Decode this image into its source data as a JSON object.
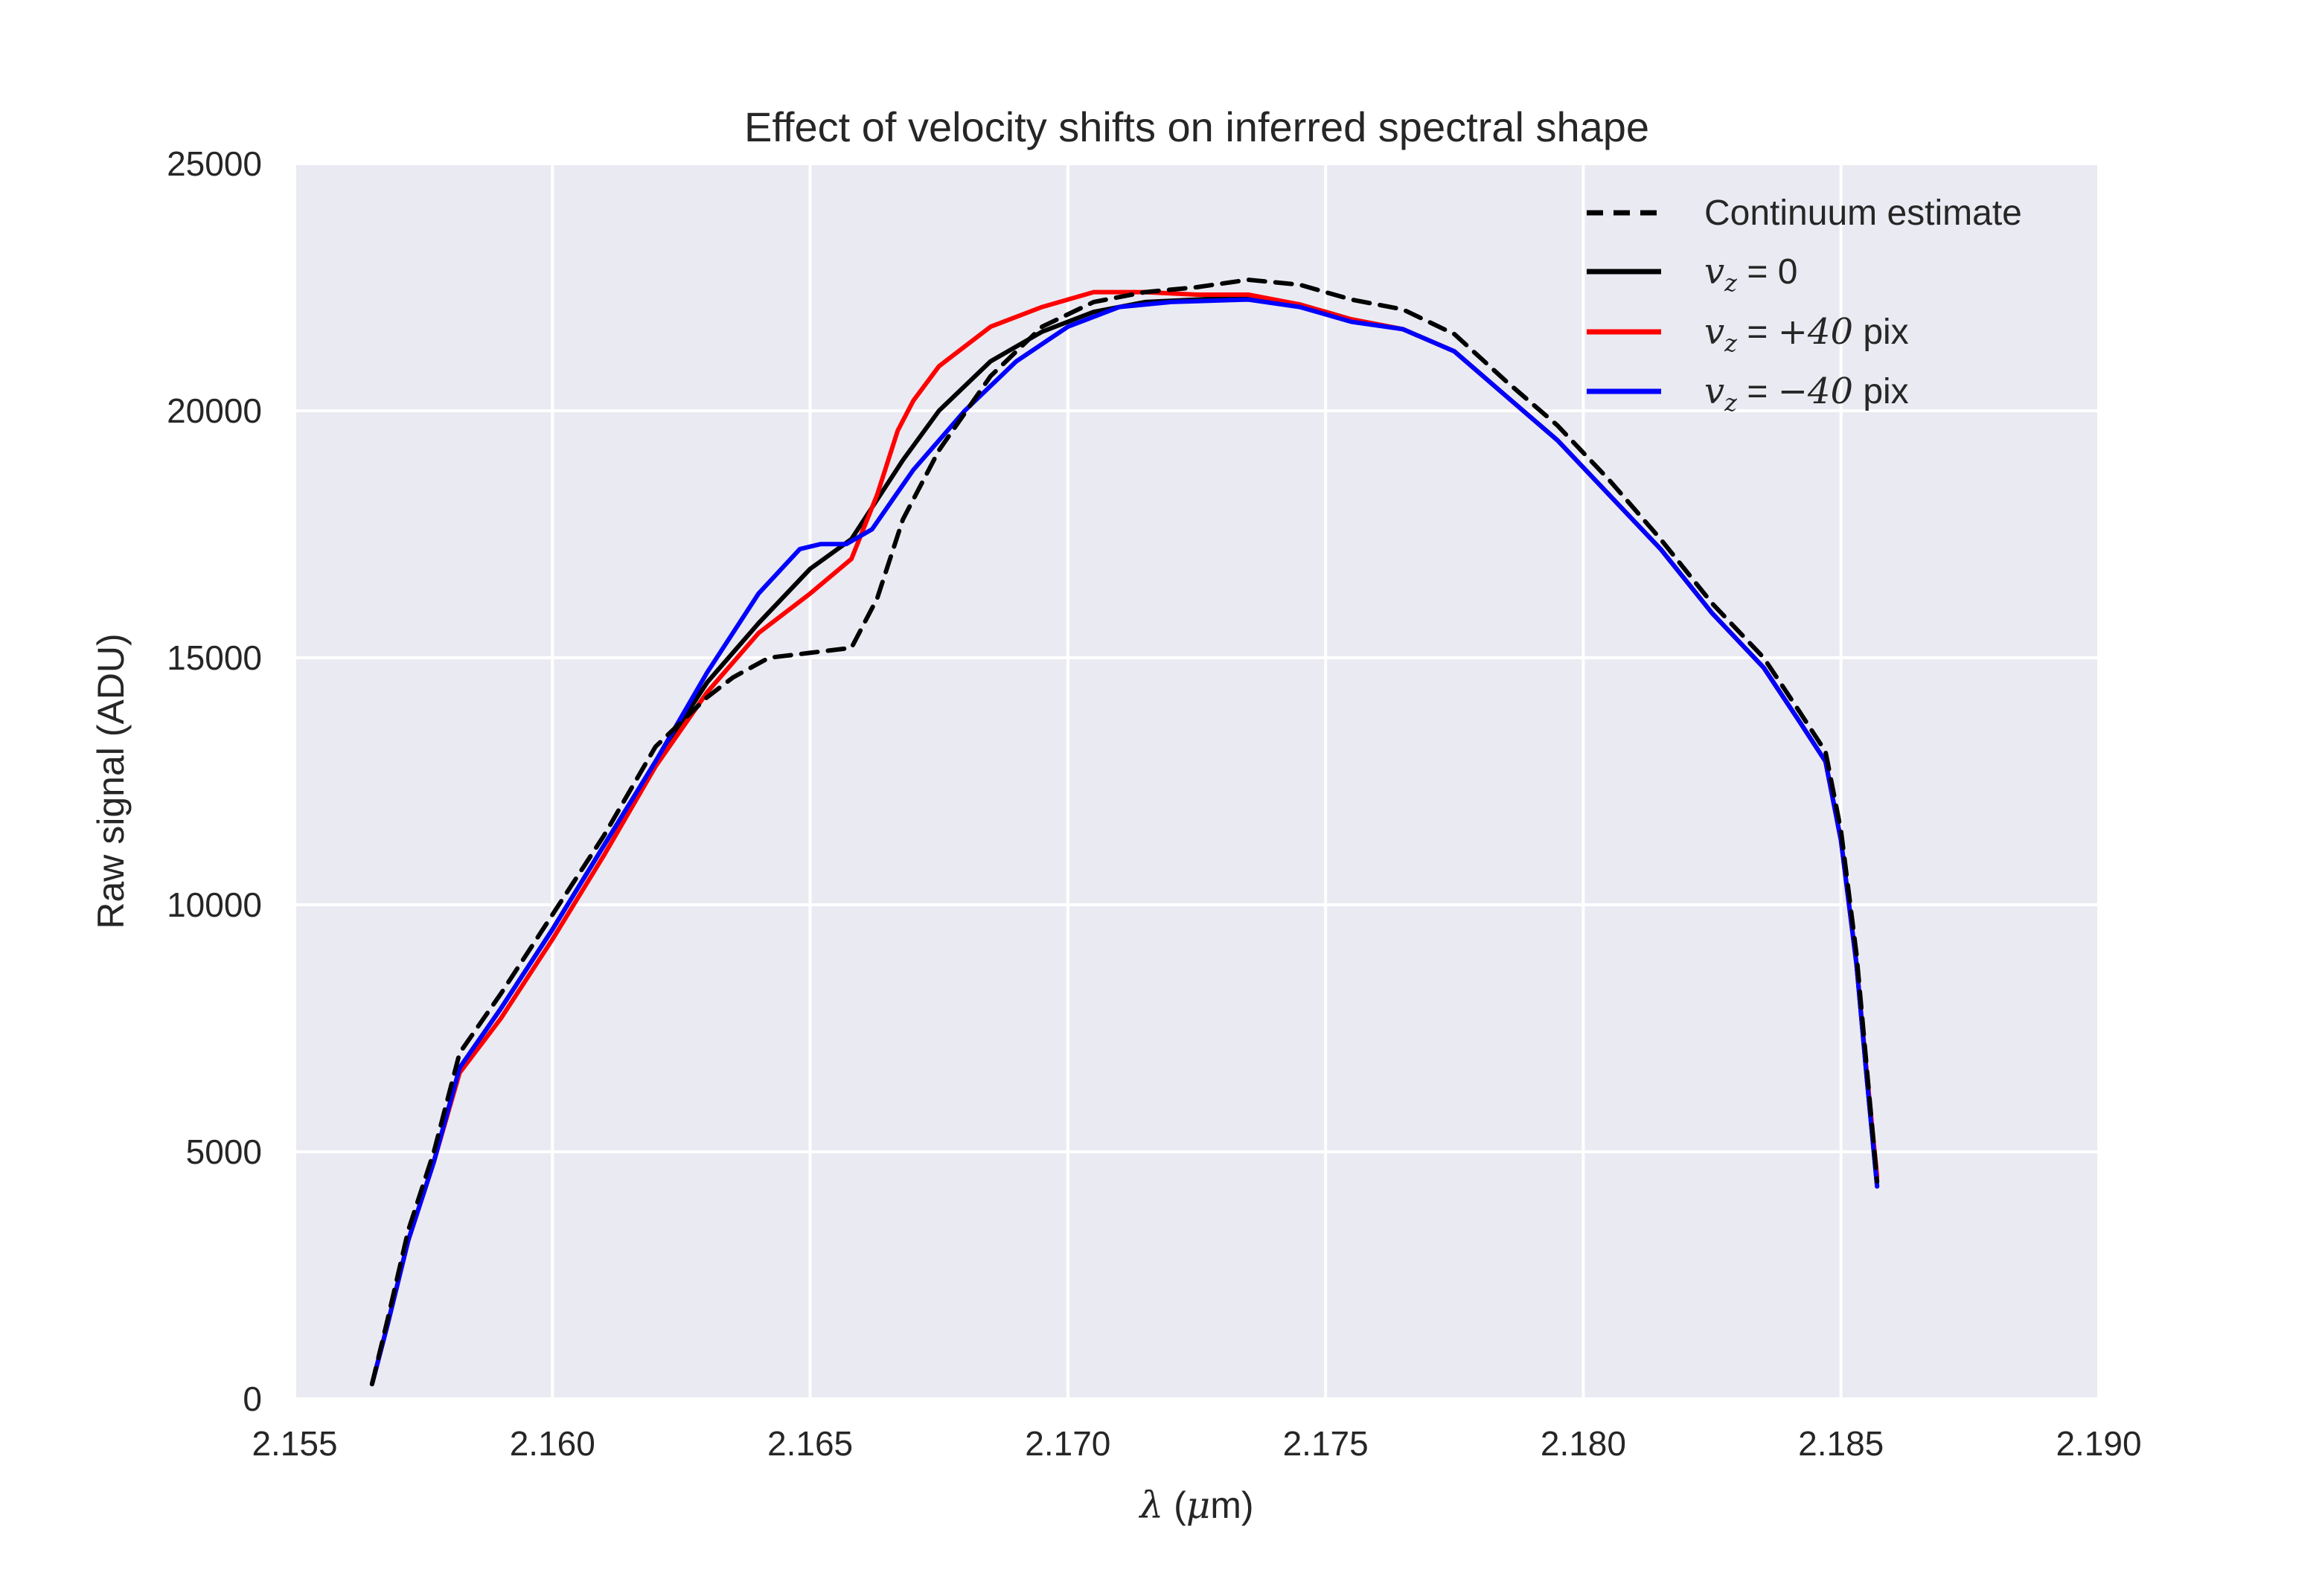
{
  "chart_data": {
    "type": "line",
    "title": "Effect of velocity shifts on inferred spectral shape",
    "xlabel": {
      "symbol": "λ",
      "open": " (",
      "mu": "μ",
      "rest": "m)"
    },
    "ylabel": "Raw signal (ADU)",
    "xlim": [
      2.155,
      2.19
    ],
    "ylim": [
      0,
      25000
    ],
    "xticks": [
      2.155,
      2.16,
      2.165,
      2.17,
      2.175,
      2.18,
      2.185,
      2.19
    ],
    "xtick_labels": [
      "2.155",
      "2.160",
      "2.165",
      "2.170",
      "2.175",
      "2.180",
      "2.185",
      "2.190"
    ],
    "yticks": [
      0,
      5000,
      10000,
      15000,
      20000,
      25000
    ],
    "ytick_labels": [
      "0",
      "5000",
      "10000",
      "15000",
      "20000",
      "25000"
    ],
    "grid": true,
    "background": "#eaeaf2",
    "legend_position": "top-right",
    "series": [
      {
        "id": "continuum",
        "label_parts": {
          "math": "",
          "text": "Continuum estimate"
        },
        "color": "#000000",
        "dash": true,
        "x": [
          2.1565,
          2.1568,
          2.1572,
          2.1577,
          2.1582,
          2.159,
          2.16,
          2.161,
          2.162,
          2.163,
          2.1635,
          2.1642,
          2.165,
          2.1658,
          2.1663,
          2.1668,
          2.1675,
          2.1685,
          2.1695,
          2.1705,
          2.1715,
          2.1725,
          2.1735,
          2.1745,
          2.1755,
          2.1765,
          2.1775,
          2.1785,
          2.1795,
          2.1805,
          2.1815,
          2.1825,
          2.1835,
          2.1842,
          2.1847,
          2.185,
          2.1853,
          2.1855,
          2.1857
        ],
        "y": [
          300,
          1600,
          3400,
          5000,
          7000,
          8200,
          9800,
          11400,
          13200,
          14200,
          14600,
          15000,
          15100,
          15200,
          16200,
          17800,
          19200,
          20700,
          21700,
          22200,
          22400,
          22500,
          22650,
          22550,
          22250,
          22050,
          21550,
          20600,
          19700,
          18600,
          17400,
          16100,
          15000,
          13900,
          13100,
          11500,
          9000,
          6700,
          4400
        ]
      },
      {
        "id": "vz0",
        "label_parts": {
          "math": "v",
          "sub": "z",
          "text": " = 0"
        },
        "color": "#000000",
        "dash": false,
        "x": [
          2.1565,
          2.1568,
          2.1572,
          2.1577,
          2.1582,
          2.159,
          2.16,
          2.161,
          2.162,
          2.163,
          2.164,
          2.165,
          2.1658,
          2.1663,
          2.1668,
          2.1675,
          2.1685,
          2.1695,
          2.1705,
          2.1715,
          2.1725,
          2.1735,
          2.1745,
          2.1755,
          2.1765,
          2.1775,
          2.1785,
          2.1795,
          2.1805,
          2.1815,
          2.1825,
          2.1835,
          2.1842,
          2.1847,
          2.185,
          2.1853,
          2.1855,
          2.1857
        ],
        "y": [
          300,
          1500,
          3200,
          4800,
          6700,
          7900,
          9500,
          11200,
          12900,
          14500,
          15700,
          16800,
          17400,
          18200,
          19000,
          20000,
          21000,
          21600,
          22000,
          22200,
          22250,
          22300,
          22150,
          21850,
          21650,
          21200,
          20300,
          19400,
          18300,
          17200,
          15900,
          14800,
          13700,
          12900,
          11300,
          8800,
          6500,
          4300
        ]
      },
      {
        "id": "vz_plus40",
        "label_parts": {
          "math": "v",
          "sub": "z",
          "text": " = ",
          "math2": "+40",
          "text2": " pix"
        },
        "color": "#ff0000",
        "dash": false,
        "x": [
          2.1565,
          2.1568,
          2.1572,
          2.1577,
          2.1582,
          2.159,
          2.16,
          2.161,
          2.162,
          2.163,
          2.164,
          2.165,
          2.1658,
          2.1663,
          2.1667,
          2.167,
          2.1675,
          2.1685,
          2.1695,
          2.1705,
          2.1715,
          2.1725,
          2.1735,
          2.1745,
          2.1755,
          2.1765,
          2.1775,
          2.1785,
          2.1795,
          2.1805,
          2.1815,
          2.1825,
          2.1835,
          2.1842,
          2.1847,
          2.185,
          2.1853,
          2.1855,
          2.1857
        ],
        "y": [
          300,
          1500,
          3200,
          4800,
          6600,
          7700,
          9300,
          11000,
          12800,
          14300,
          15500,
          16300,
          17000,
          18300,
          19600,
          20200,
          20900,
          21700,
          22100,
          22400,
          22400,
          22350,
          22350,
          22150,
          21850,
          21650,
          21200,
          20300,
          19400,
          18300,
          17200,
          15900,
          14800,
          13700,
          12900,
          11300,
          8800,
          6600,
          4500
        ]
      },
      {
        "id": "vz_minus40",
        "label_parts": {
          "math": "v",
          "sub": "z",
          "text": " = ",
          "math2": "−40",
          "text2": " pix"
        },
        "color": "#0000ff",
        "dash": false,
        "x": [
          2.1565,
          2.1568,
          2.1572,
          2.1577,
          2.1582,
          2.159,
          2.16,
          2.161,
          2.162,
          2.163,
          2.164,
          2.1648,
          2.1652,
          2.1657,
          2.1662,
          2.1666,
          2.167,
          2.168,
          2.169,
          2.17,
          2.171,
          2.172,
          2.1735,
          2.1745,
          2.1755,
          2.1765,
          2.1775,
          2.1785,
          2.1795,
          2.1805,
          2.1815,
          2.1825,
          2.1835,
          2.1842,
          2.1847,
          2.185,
          2.1853,
          2.1855,
          2.1857
        ],
        "y": [
          300,
          1500,
          3200,
          4800,
          6700,
          7900,
          9500,
          11200,
          12900,
          14700,
          16300,
          17200,
          17300,
          17300,
          17600,
          18200,
          18800,
          20000,
          21000,
          21700,
          22100,
          22200,
          22250,
          22100,
          21800,
          21650,
          21200,
          20300,
          19400,
          18300,
          17200,
          15900,
          14800,
          13700,
          12900,
          11300,
          8800,
          6500,
          4300
        ]
      }
    ]
  }
}
